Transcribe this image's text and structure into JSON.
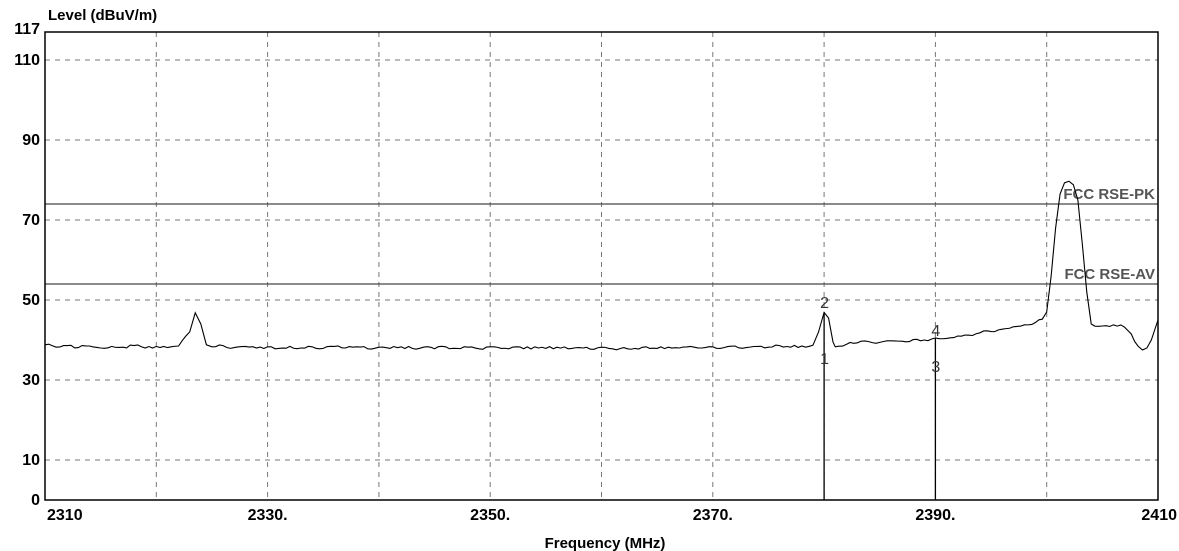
{
  "chart_data": {
    "type": "line",
    "title": "",
    "ylabel": "Level (dBuV/m)",
    "xlabel": "Frequency (MHz)",
    "xlim": [
      2310,
      2410
    ],
    "ylim": [
      0,
      117
    ],
    "x_ticks": [
      {
        "value": 2310,
        "label": "2310"
      },
      {
        "value": 2330,
        "label": "2330."
      },
      {
        "value": 2350,
        "label": "2350."
      },
      {
        "value": 2370,
        "label": "2370."
      },
      {
        "value": 2390,
        "label": "2390."
      },
      {
        "value": 2410,
        "label": "2410"
      }
    ],
    "y_ticks": [
      {
        "value": 0,
        "label": "0"
      },
      {
        "value": 10,
        "label": "10"
      },
      {
        "value": 30,
        "label": "30"
      },
      {
        "value": 50,
        "label": "50"
      },
      {
        "value": 70,
        "label": "70"
      },
      {
        "value": 90,
        "label": "90"
      },
      {
        "value": 110,
        "label": "110"
      },
      {
        "value": 117,
        "label": "117"
      }
    ],
    "grid": true,
    "grid_x": [
      2320,
      2330,
      2340,
      2350,
      2360,
      2370,
      2380,
      2390,
      2400
    ],
    "grid_y": [
      10,
      30,
      50,
      70,
      90,
      110
    ],
    "limit_lines": [
      {
        "name": "FCC RSE-PK",
        "value": 74
      },
      {
        "name": "FCC RSE-AV",
        "value": 54
      }
    ],
    "series": [
      {
        "values": [
          [
            2310.0,
            38.8
          ],
          [
            2311.0,
            38.2
          ],
          [
            2312.0,
            38.6
          ],
          [
            2313.0,
            38.1
          ],
          [
            2314.0,
            38.5
          ],
          [
            2315.0,
            38.0
          ],
          [
            2316.0,
            38.4
          ],
          [
            2317.0,
            38.2
          ],
          [
            2318.0,
            38.6
          ],
          [
            2319.0,
            38.0
          ],
          [
            2320.0,
            38.4
          ],
          [
            2321.0,
            38.1
          ],
          [
            2322.0,
            38.5
          ],
          [
            2323.0,
            42.0
          ],
          [
            2323.5,
            46.8
          ],
          [
            2324.0,
            44.0
          ],
          [
            2324.5,
            38.8
          ],
          [
            2325.0,
            38.3
          ],
          [
            2326.0,
            38.6
          ],
          [
            2327.0,
            38.1
          ],
          [
            2328.0,
            38.4
          ],
          [
            2329.0,
            38.0
          ],
          [
            2330.0,
            38.3
          ],
          [
            2331.0,
            37.9
          ],
          [
            2332.0,
            38.4
          ],
          [
            2333.0,
            38.0
          ],
          [
            2334.0,
            38.3
          ],
          [
            2335.0,
            37.9
          ],
          [
            2336.0,
            38.4
          ],
          [
            2337.0,
            38.0
          ],
          [
            2338.0,
            38.3
          ],
          [
            2339.0,
            37.8
          ],
          [
            2340.0,
            38.2
          ],
          [
            2341.0,
            37.9
          ],
          [
            2342.0,
            38.3
          ],
          [
            2343.0,
            37.9
          ],
          [
            2344.0,
            38.2
          ],
          [
            2345.0,
            37.8
          ],
          [
            2346.0,
            38.3
          ],
          [
            2347.0,
            37.9
          ],
          [
            2348.0,
            38.2
          ],
          [
            2349.0,
            37.8
          ],
          [
            2350.0,
            38.3
          ],
          [
            2351.0,
            37.9
          ],
          [
            2352.0,
            38.2
          ],
          [
            2353.0,
            37.8
          ],
          [
            2354.0,
            38.3
          ],
          [
            2355.0,
            37.9
          ],
          [
            2356.0,
            38.2
          ],
          [
            2357.0,
            37.8
          ],
          [
            2358.0,
            38.1
          ],
          [
            2359.0,
            37.7
          ],
          [
            2360.0,
            38.2
          ],
          [
            2361.0,
            37.8
          ],
          [
            2362.0,
            38.1
          ],
          [
            2363.0,
            37.9
          ],
          [
            2364.0,
            38.3
          ],
          [
            2365.0,
            37.9
          ],
          [
            2366.0,
            38.2
          ],
          [
            2367.0,
            38.0
          ],
          [
            2368.0,
            38.4
          ],
          [
            2369.0,
            38.0
          ],
          [
            2370.0,
            38.3
          ],
          [
            2371.0,
            38.1
          ],
          [
            2372.0,
            38.5
          ],
          [
            2373.0,
            38.1
          ],
          [
            2374.0,
            38.4
          ],
          [
            2375.0,
            38.2
          ],
          [
            2376.0,
            38.6
          ],
          [
            2377.0,
            38.2
          ],
          [
            2378.0,
            38.5
          ],
          [
            2379.0,
            38.7
          ],
          [
            2379.5,
            42.0
          ],
          [
            2380.0,
            46.9
          ],
          [
            2380.4,
            45.5
          ],
          [
            2380.8,
            39.5
          ],
          [
            2381.0,
            38.3
          ],
          [
            2382.0,
            38.9
          ],
          [
            2383.0,
            39.3
          ],
          [
            2384.0,
            39.6
          ],
          [
            2385.0,
            39.4
          ],
          [
            2386.0,
            39.8
          ],
          [
            2387.0,
            39.7
          ],
          [
            2388.0,
            40.1
          ],
          [
            2389.0,
            40.0
          ],
          [
            2390.0,
            40.5
          ],
          [
            2391.0,
            40.4
          ],
          [
            2392.0,
            41.0
          ],
          [
            2393.0,
            41.2
          ],
          [
            2394.0,
            41.8
          ],
          [
            2395.0,
            42.1
          ],
          [
            2396.0,
            42.7
          ],
          [
            2397.0,
            43.3
          ],
          [
            2398.0,
            43.8
          ],
          [
            2399.0,
            44.4
          ],
          [
            2399.6,
            45.2
          ],
          [
            2400.0,
            47.0
          ],
          [
            2400.4,
            56.0
          ],
          [
            2400.8,
            68.0
          ],
          [
            2401.2,
            76.5
          ],
          [
            2401.6,
            79.3
          ],
          [
            2402.0,
            79.7
          ],
          [
            2402.4,
            78.8
          ],
          [
            2402.8,
            75.0
          ],
          [
            2403.2,
            64.0
          ],
          [
            2403.6,
            52.0
          ],
          [
            2404.0,
            44.0
          ],
          [
            2405.0,
            43.5
          ],
          [
            2406.0,
            43.8
          ],
          [
            2407.0,
            43.2
          ],
          [
            2407.6,
            41.5
          ],
          [
            2408.2,
            38.5
          ],
          [
            2408.6,
            37.5
          ],
          [
            2409.0,
            38.0
          ],
          [
            2409.4,
            40.0
          ],
          [
            2409.7,
            42.5
          ],
          [
            2410.0,
            45.0
          ]
        ]
      }
    ],
    "markers": [
      {
        "label": "1",
        "x": 2380.0,
        "y": 0
      },
      {
        "label": "2",
        "x": 2380.0,
        "y": 46.9
      },
      {
        "label": "3",
        "x": 2390.0,
        "y": 0
      },
      {
        "label": "4",
        "x": 2390.0,
        "y": 40.5
      }
    ],
    "marker_text_levels": [
      {
        "label": "1",
        "y": 34
      },
      {
        "label": "2",
        "y": 48
      },
      {
        "label": "3",
        "y": 32
      },
      {
        "label": "4",
        "y": 41
      }
    ],
    "colors": {
      "trace": "#000000",
      "grid": "#777777",
      "limit_line": "#444444",
      "limit_label": "#555555",
      "frame": "#000000"
    }
  }
}
